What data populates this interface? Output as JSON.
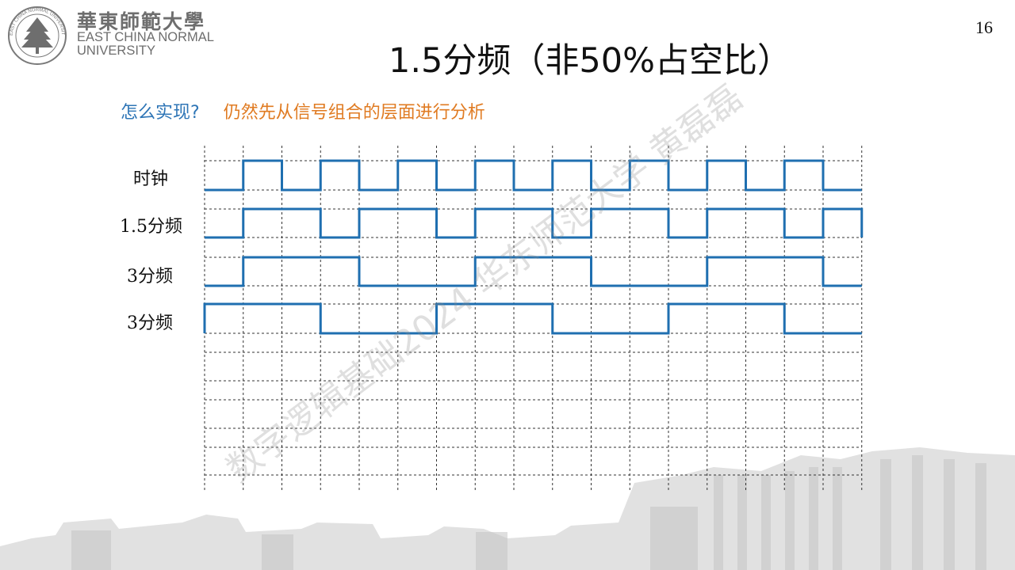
{
  "header": {
    "university_cn": "華東師範大學",
    "university_en_line1": "EAST CHINA NORMAL",
    "university_en_line2": "UNIVERSITY",
    "emblem_ring_text": "EAST CHINA NORMAL UNIVERSITY"
  },
  "page_number": "16",
  "title": "1.5分频（非50%占空比）",
  "subtitle": {
    "question": "怎么实现?",
    "answer": "仍然先从信号组合的层面进行分析"
  },
  "signals": [
    {
      "label": "时钟",
      "levels": [
        0,
        1,
        0,
        1,
        0,
        1,
        0,
        1,
        0,
        1,
        0,
        1,
        0,
        1,
        0,
        1,
        0
      ]
    },
    {
      "label": "1.5分频",
      "levels": [
        0,
        1,
        1,
        0,
        1,
        1,
        0,
        1,
        1,
        0,
        1,
        1,
        0,
        1,
        1,
        0,
        1
      ]
    },
    {
      "label": "3分频",
      "levels": [
        0,
        1,
        1,
        1,
        0,
        0,
        0,
        1,
        1,
        1,
        0,
        0,
        0,
        1,
        1,
        1,
        0
      ]
    },
    {
      "label": "3分频",
      "levels": [
        1,
        1,
        1,
        0,
        0,
        0,
        1,
        1,
        1,
        0,
        0,
        0,
        1,
        1,
        1,
        0,
        0
      ]
    }
  ],
  "colors": {
    "waveform": "#1f6fb0",
    "grid": "#333333",
    "question": "#2e75b6",
    "answer": "#e07b22"
  },
  "watermark": "数字逻辑基础2024 华东师范大学 黄磊磊"
}
